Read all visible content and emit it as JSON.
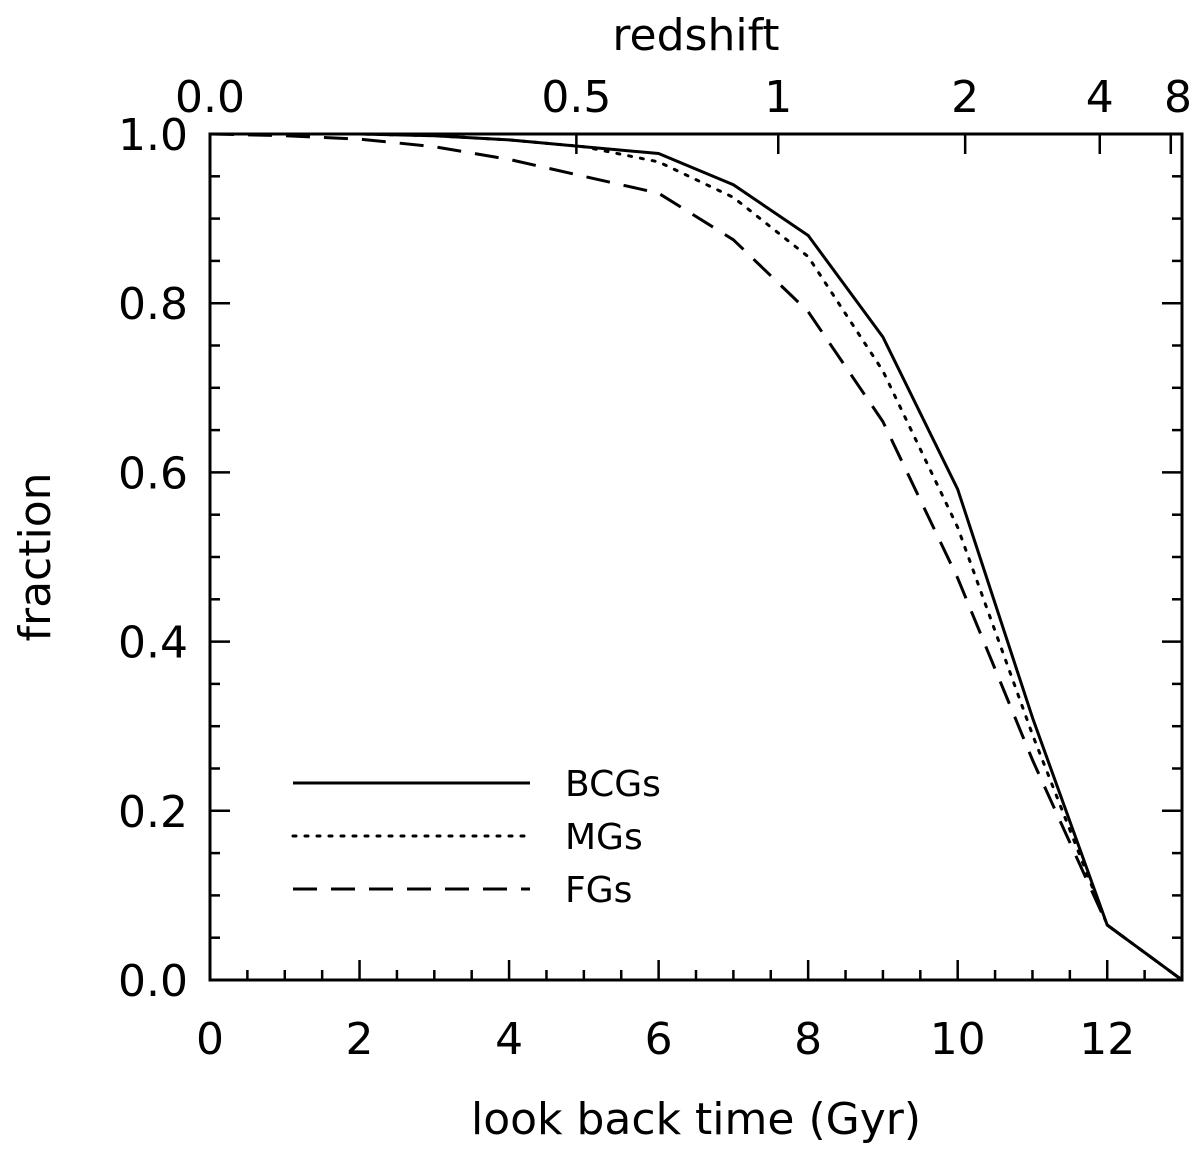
{
  "chart_data": {
    "type": "line",
    "title": "",
    "xlabel": "look back time (Gyr)",
    "ylabel": "fraction",
    "top_axis_label": "redshift",
    "xlim": [
      0,
      13
    ],
    "ylim": [
      0,
      1
    ],
    "x_ticks": [
      0,
      2,
      4,
      6,
      8,
      10,
      12
    ],
    "x_tick_labels": [
      "0",
      "2",
      "4",
      "6",
      "8",
      "10",
      "12"
    ],
    "y_ticks": [
      0,
      0.2,
      0.4,
      0.6,
      0.8,
      1.0
    ],
    "y_tick_labels": [
      "0.0",
      "0.2",
      "0.4",
      "0.6",
      "0.8",
      "1.0"
    ],
    "top_ticks": [
      {
        "label": "0.0",
        "lookback": 0
      },
      {
        "label": "0.5",
        "lookback": 4.9
      },
      {
        "label": "1",
        "lookback": 7.6
      },
      {
        "label": "2",
        "lookback": 10.1
      },
      {
        "label": "4",
        "lookback": 11.9
      },
      {
        "label": "8",
        "lookback": 12.85
      }
    ],
    "grid": false,
    "legend_position": "bottom-left",
    "x": [
      0,
      1,
      2,
      3,
      4,
      5,
      6,
      7,
      8,
      9,
      10,
      11,
      12,
      13
    ],
    "series": [
      {
        "name": "BCGs",
        "style": "solid",
        "values": [
          1.0,
          1.0,
          1.0,
          0.998,
          0.993,
          0.985,
          0.977,
          0.94,
          0.88,
          0.76,
          0.58,
          0.31,
          0.065,
          0.0
        ]
      },
      {
        "name": "MGs",
        "style": "dotted",
        "values": [
          1.0,
          1.0,
          1.0,
          0.998,
          0.993,
          0.985,
          0.967,
          0.925,
          0.855,
          0.72,
          0.535,
          0.29,
          0.065,
          0.0
        ]
      },
      {
        "name": "FGs",
        "style": "dashed",
        "values": [
          1.0,
          0.998,
          0.994,
          0.985,
          0.97,
          0.95,
          0.93,
          0.875,
          0.79,
          0.66,
          0.475,
          0.26,
          0.065,
          0.0
        ]
      }
    ]
  }
}
